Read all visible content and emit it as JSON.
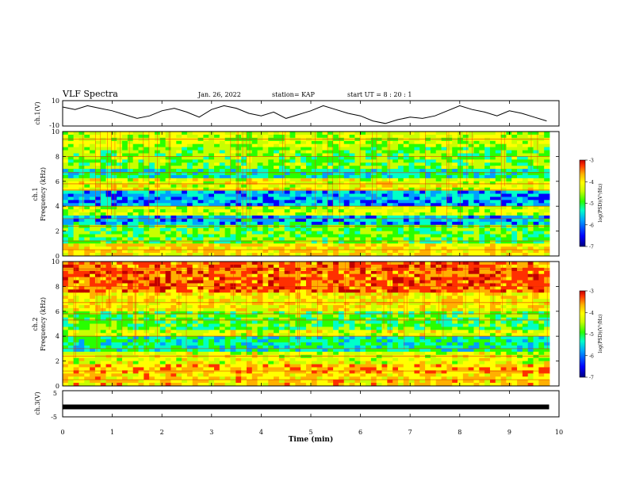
{
  "header": {
    "title": "VLF Spectra",
    "date": "Jan. 26, 2022",
    "station": "station= KAP",
    "start": "start UT =  8 : 20 : 1"
  },
  "chart_data": [
    {
      "type": "line",
      "panel": "ch1-waveform",
      "ylabel": "ch.1(V)",
      "ylim": [
        -10,
        10
      ],
      "ytick_labels": [
        "10",
        "-10"
      ],
      "xlim": [
        0,
        10
      ],
      "x": [
        0,
        0.25,
        0.5,
        0.75,
        1,
        1.25,
        1.5,
        1.75,
        2,
        2.25,
        2.5,
        2.75,
        3,
        3.25,
        3.5,
        3.75,
        4,
        4.25,
        4.5,
        4.75,
        5,
        5.25,
        5.5,
        5.75,
        6,
        6.25,
        6.5,
        6.75,
        7,
        7.25,
        7.5,
        7.75,
        8,
        8.25,
        8.5,
        8.75,
        9,
        9.25,
        9.5,
        9.75
      ],
      "values": [
        5,
        3,
        6,
        4,
        2,
        -1,
        -4,
        -2,
        2,
        4,
        1,
        -3,
        3,
        6,
        4,
        0,
        -2,
        1,
        -4,
        -1,
        2,
        6,
        3,
        0,
        -2,
        -6,
        -8,
        -5,
        -3,
        -4,
        -2,
        2,
        6,
        3,
        1,
        -2,
        2,
        0,
        -3,
        -6
      ]
    },
    {
      "type": "heatmap",
      "panel": "ch1-spectrogram",
      "ylabel": "ch.1\nFrequency (kHz)",
      "ylim": [
        0,
        10
      ],
      "ytick_labels": [
        "0",
        "2",
        "4",
        "6",
        "8",
        "10"
      ],
      "xlim": [
        0,
        10
      ],
      "colorbar": {
        "label": "log(PSD)(V²/Hz)",
        "range": [
          -7,
          -3
        ],
        "tick_labels": [
          "-3",
          "-4",
          "-5",
          "-6",
          "-7"
        ]
      }
    },
    {
      "type": "heatmap",
      "panel": "ch2-spectrogram",
      "ylabel": "ch.2\nFrequency (kHz)",
      "ylim": [
        0,
        10
      ],
      "ytick_labels": [
        "0",
        "2",
        "4",
        "6",
        "8",
        "10"
      ],
      "xlim": [
        0,
        10
      ],
      "colorbar": {
        "label": "log(PSD)(V²/Hz)",
        "range": [
          -7,
          -3
        ],
        "tick_labels": [
          "-3",
          "-4",
          "-5",
          "-6",
          "-7"
        ]
      }
    },
    {
      "type": "line",
      "panel": "ch3-waveform",
      "ylabel": "ch.3(V)",
      "ylim": [
        -5,
        5
      ],
      "ytick_labels": [
        "5",
        "-5"
      ],
      "xlim": [
        0,
        10
      ],
      "x": [
        0,
        9.8
      ],
      "values": [
        -1.2,
        -1.2
      ]
    }
  ],
  "xaxis": {
    "label": "Time (min)",
    "ticks": [
      "0",
      "1",
      "2",
      "3",
      "4",
      "5",
      "6",
      "7",
      "8",
      "9",
      "10"
    ]
  },
  "colors": {
    "colormap": [
      "#000080",
      "#0000ff",
      "#00a0ff",
      "#00ffc8",
      "#28ff00",
      "#c8ff00",
      "#ffff00",
      "#ffb000",
      "#ff3000",
      "#c00000"
    ]
  }
}
